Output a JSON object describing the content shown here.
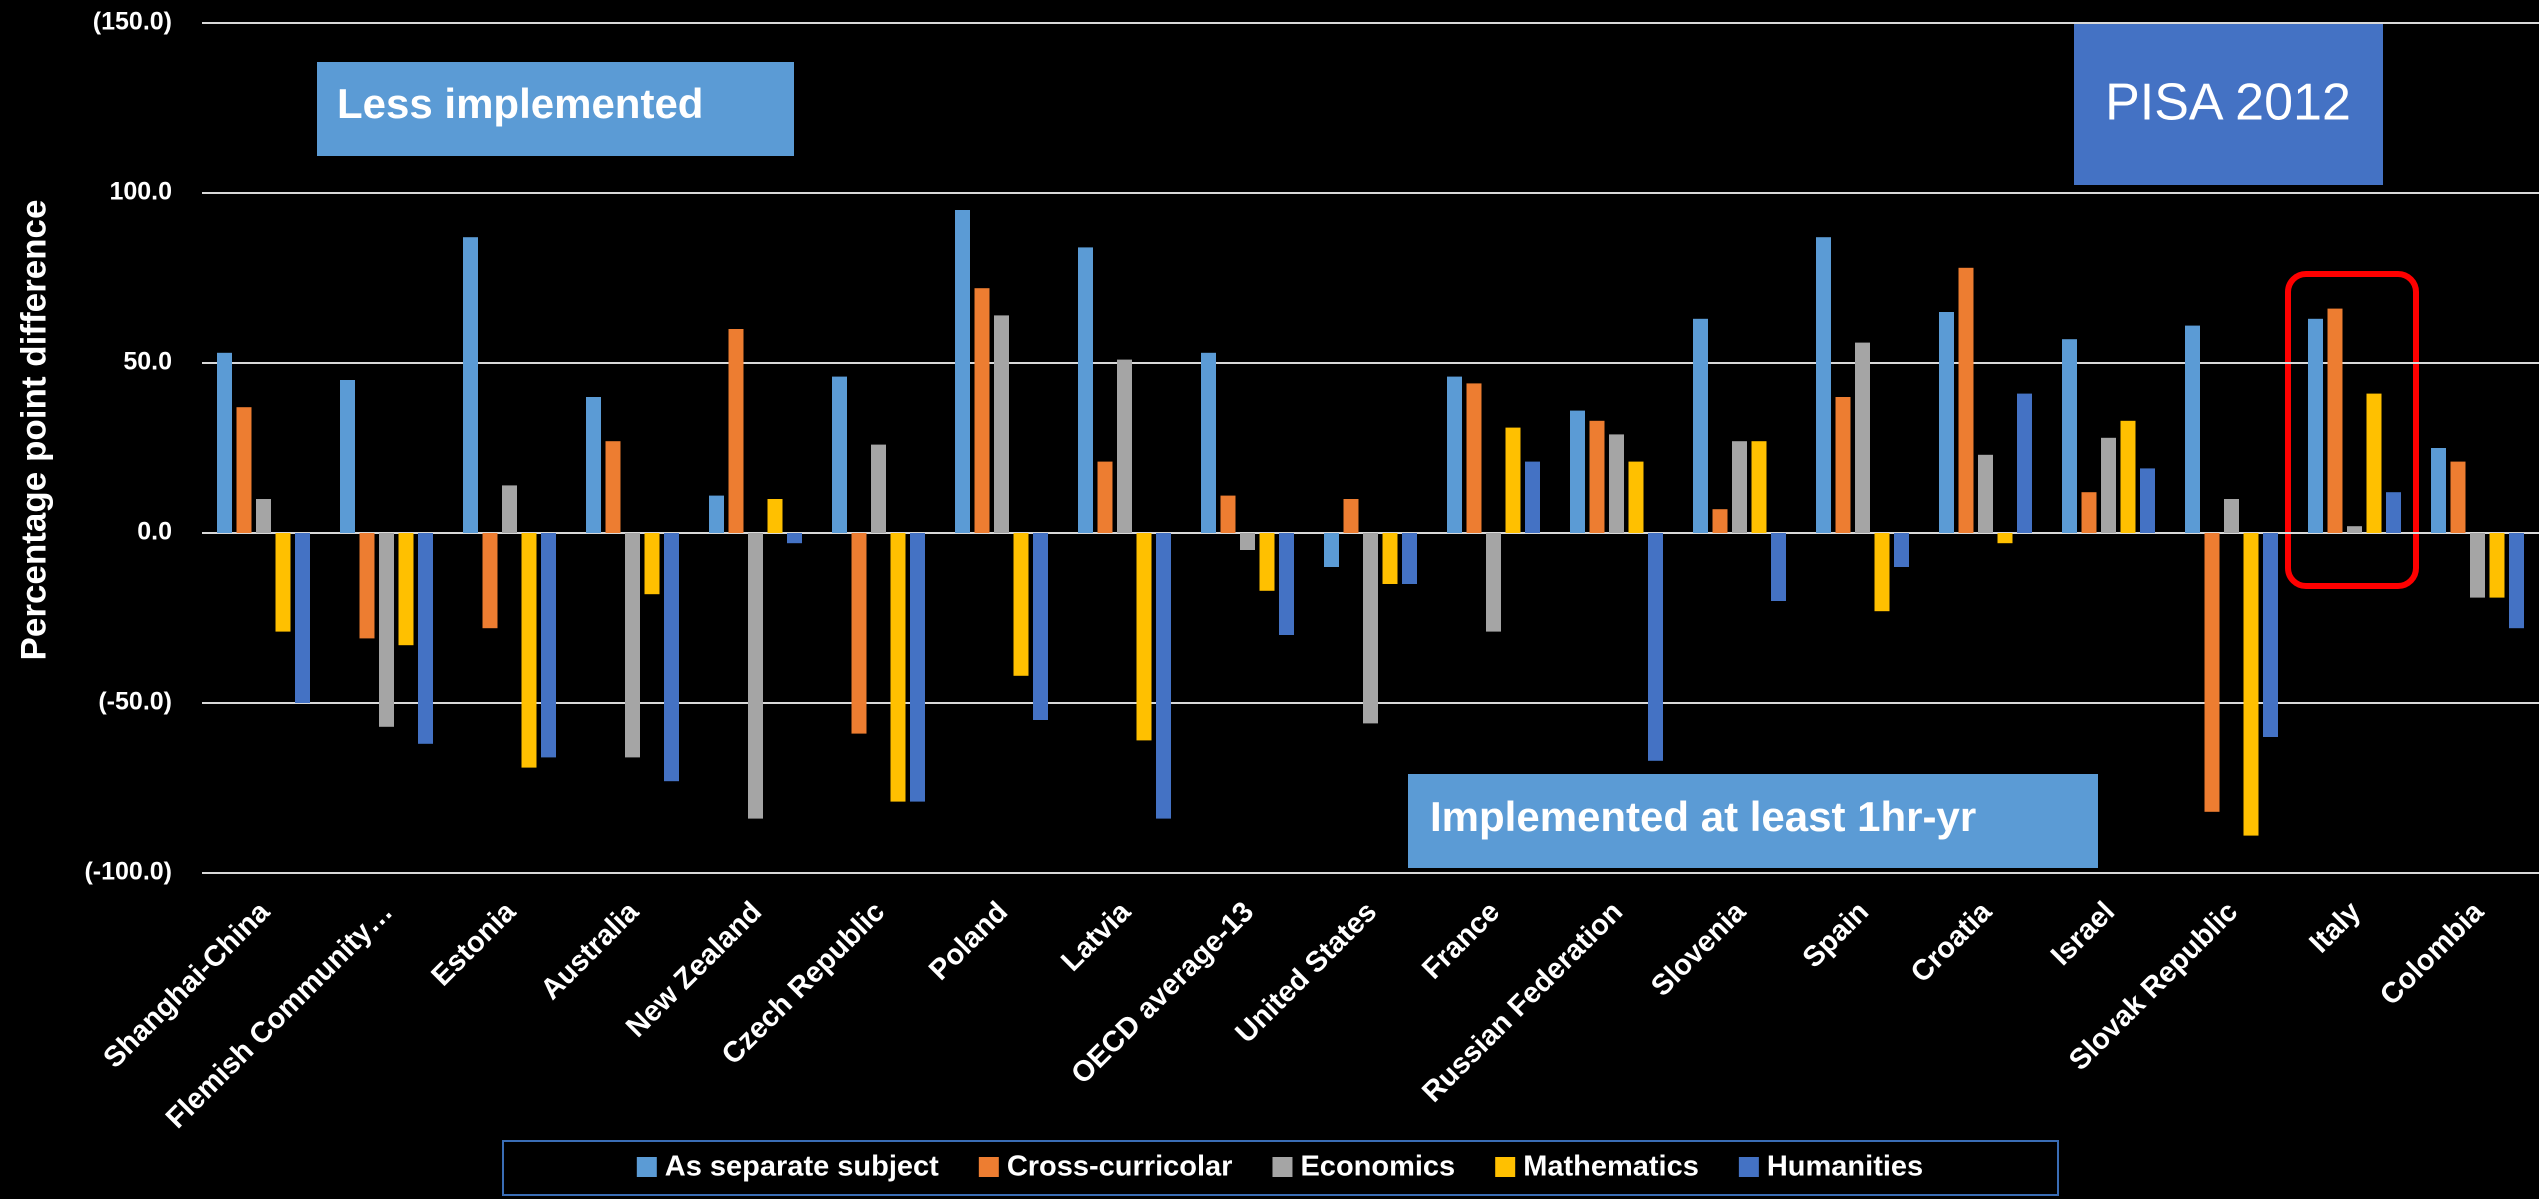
{
  "chart_data": {
    "type": "bar",
    "y_label": "Percentage point difference",
    "annotations": [
      "Less implemented",
      "Implemented at least 1hr-yr",
      "PISA 2012"
    ],
    "categories": [
      "Shanghai-China",
      "Flemish Community…",
      "Estonia",
      "Australia",
      "New Zealand",
      "Czech Republic",
      "Poland",
      "Latvia",
      "OECD average-13",
      "United States",
      "France",
      "Russian Federation",
      "Slovenia",
      "Spain",
      "Croatia",
      "Israel",
      "Slovak Republic",
      "Italy",
      "Colombia"
    ],
    "series": [
      {
        "name": "As separate subject",
        "color": "#5b9bd5",
        "values": [
          53,
          45,
          87,
          40,
          11,
          46,
          95,
          84,
          53,
          -10,
          46,
          36,
          63,
          87,
          65,
          57,
          61,
          63,
          25
        ]
      },
      {
        "name": "Cross-curricolar",
        "color": "#ed7d31",
        "values": [
          37,
          -31,
          -28,
          27,
          60,
          -59,
          72,
          21,
          11,
          10,
          44,
          33,
          7,
          40,
          78,
          12,
          -82,
          66,
          21
        ]
      },
      {
        "name": "Economics",
        "color": "#a5a5a5",
        "values": [
          10,
          -57,
          14,
          -66,
          -84,
          26,
          64,
          51,
          -5,
          -56,
          -29,
          29,
          27,
          56,
          23,
          28,
          10,
          2,
          -19
        ]
      },
      {
        "name": "Mathematics",
        "color": "#ffc000",
        "values": [
          -29,
          -33,
          -69,
          -18,
          10,
          -79,
          -42,
          -61,
          -17,
          -15,
          31,
          21,
          27,
          -23,
          -3,
          33,
          -89,
          41,
          -19
        ]
      },
      {
        "name": "Humanities",
        "color": "#4472c4",
        "values": [
          -50,
          -62,
          -66,
          -73,
          -3,
          -79,
          -55,
          -84,
          -30,
          -15,
          21,
          -67,
          -20,
          -10,
          41,
          19,
          -60,
          12,
          -28
        ]
      }
    ],
    "ylim": [
      -100,
      150
    ],
    "yticks": [
      {
        "value": -100,
        "label": "(-100.0)"
      },
      {
        "value": -50,
        "label": "(-50.0)"
      },
      {
        "value": 0,
        "label": "0.0"
      },
      {
        "value": 50,
        "label": "50.0"
      },
      {
        "value": 100,
        "label": "100.0"
      },
      {
        "value": 150,
        "label": "(150.0)"
      }
    ],
    "grid": true
  }
}
